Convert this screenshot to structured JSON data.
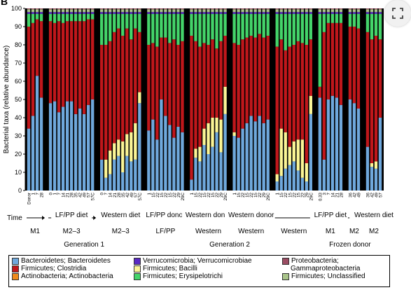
{
  "panel_label": "B",
  "chart_data": {
    "type": "bar",
    "stacked": true,
    "ylabel": "Bacterial taxa (relative abundance)",
    "ylim": [
      0,
      100
    ],
    "yticks": [
      0,
      10,
      20,
      30,
      40,
      50,
      60,
      70,
      80,
      90,
      100
    ],
    "xlabel_prefix": "Time",
    "series": [
      {
        "name": "Bacteroidetes; Bacteroidetes",
        "color": "#6fa8dc"
      },
      {
        "name": "Firmicutes; Clostridia",
        "color": "#c0171b"
      },
      {
        "name": "Actinobacteria; Actinobacteria",
        "color": "#f08a1c"
      },
      {
        "name": "Verrucomicrobia; Verrucomicrobiae",
        "color": "#5a2bc4"
      },
      {
        "name": "Firmicutes; Bacilli",
        "color": "#fbf596"
      },
      {
        "name": "Firmicutes; Erysipelotrichi",
        "color": "#44d46a"
      },
      {
        "name": "Proteobacteria; Gammaproteobacteria",
        "color": "#9b4d63"
      },
      {
        "name": "Firmicutes; Unclassified",
        "color": "#a9c48a"
      }
    ],
    "groups": [
      {
        "phase": "M1",
        "diet": "",
        "labels": [
          "Donor",
          "1",
          "7",
          "28"
        ],
        "bacteroidetes": [
          34,
          41,
          63,
          51
        ],
        "bacilli": [
          0,
          0,
          0,
          0
        ],
        "erysipelotrichi": [
          7,
          5,
          3,
          4
        ]
      },
      {
        "phase": "M2–3",
        "diet": "LF/PP diet",
        "labels": [
          "0",
          "1",
          "7",
          "14",
          "21",
          "28",
          "35",
          "42",
          "49",
          "57",
          "57C"
        ],
        "bacteroidetes": [
          48,
          49,
          43,
          46,
          49,
          49,
          42,
          45,
          42,
          47,
          50
        ],
        "bacilli": [
          0,
          0,
          0,
          0,
          0,
          0,
          0,
          0,
          0,
          0,
          0
        ],
        "erysipelotrichi": [
          4,
          5,
          4,
          5,
          4,
          4,
          4,
          4,
          4,
          3,
          3
        ]
      },
      {
        "phase": "M2–3",
        "diet": "Western diet",
        "labels": [
          "0",
          "7",
          "14",
          "21",
          "28",
          "35",
          "42",
          "49",
          "57",
          "57C"
        ],
        "bacteroidetes": [
          17,
          7,
          9,
          17,
          19,
          10,
          19,
          16,
          17,
          48
        ],
        "bacilli": [
          0,
          10,
          13,
          9,
          9,
          17,
          12,
          16,
          20,
          6
        ],
        "erysipelotrichi": [
          17,
          17,
          15,
          10,
          8,
          12,
          8,
          14,
          8,
          10
        ]
      },
      {
        "phase": "LF/PP",
        "diet": "LF/PP donor",
        "labels": [
          "1",
          "15",
          "22",
          "15",
          "22",
          "15",
          "22",
          "29",
          "29C"
        ],
        "bacteroidetes": [
          33,
          39,
          28,
          50,
          41,
          36,
          29,
          35,
          32
        ],
        "bacilli": [
          0,
          0,
          0,
          0,
          0,
          0,
          0,
          0,
          0
        ],
        "erysipelotrichi": [
          17,
          16,
          18,
          13,
          13,
          16,
          14,
          17,
          15
        ]
      },
      {
        "phase": "Western",
        "diet": "Western donor",
        "labels": [
          "1",
          "15",
          "22",
          "15",
          "22",
          "15",
          "22",
          "29",
          "29C"
        ],
        "bacteroidetes": [
          6,
          18,
          16,
          25,
          20,
          24,
          32,
          21,
          42
        ],
        "bacilli": [
          0,
          5,
          8,
          9,
          17,
          16,
          8,
          18,
          15
        ],
        "erysipelotrichi": [
          12,
          15,
          18,
          16,
          17,
          14,
          19,
          15,
          12
        ]
      },
      {
        "phase": "Western",
        "diet": "Western donor",
        "labels": [
          "1",
          "15",
          "22",
          "15",
          "22",
          "15",
          "22",
          "29",
          "29C"
        ],
        "bacteroidetes": [
          30,
          29,
          34,
          37,
          41,
          38,
          41,
          37,
          39
        ],
        "bacilli": [
          2,
          0,
          0,
          0,
          0,
          0,
          0,
          0,
          0
        ],
        "erysipelotrichi": [
          16,
          17,
          14,
          13,
          12,
          13,
          11,
          13,
          12
        ]
      },
      {
        "phase": "Western",
        "diet": "",
        "labels": [
          "1",
          "15",
          "22",
          "15",
          "22",
          "15",
          "22",
          "29",
          "29C"
        ],
        "bacteroidetes": [
          5,
          8,
          12,
          14,
          16,
          11,
          7,
          5,
          42
        ],
        "bacilli": [
          4,
          26,
          20,
          10,
          11,
          17,
          21,
          10,
          10
        ],
        "erysipelotrichi": [
          18,
          14,
          20,
          18,
          17,
          15,
          16,
          17,
          14
        ]
      },
      {
        "phase": "M1",
        "diet": "LF/PP diet",
        "labels": [
          "0.33",
          "3",
          "7",
          "14",
          "21",
          "28"
        ],
        "bacteroidetes": [
          51,
          17,
          50,
          52,
          51,
          47
        ],
        "bacilli": [
          0,
          0,
          0,
          0,
          0,
          0
        ],
        "erysipelotrichi": [
          40,
          10,
          5,
          5,
          5,
          5
        ]
      },
      {
        "phase": "M2",
        "diet": "",
        "labels": [
          "36",
          "42",
          "49"
        ],
        "bacteroidetes": [
          50,
          48,
          45
        ],
        "bacilli": [
          0,
          0,
          0
        ],
        "erysipelotrichi": [
          7,
          7,
          8
        ]
      },
      {
        "phase": "M2",
        "diet": "Western diet",
        "labels": [
          "36",
          "42",
          "49",
          "57"
        ],
        "bacteroidetes": [
          24,
          13,
          12,
          40
        ],
        "bacilli": [
          0,
          2,
          4,
          0
        ],
        "erysipelotrichi": [
          10,
          14,
          12,
          14
        ]
      }
    ]
  },
  "time_axis": {
    "label": "Time",
    "bottom_labels": [
      {
        "text": "M1"
      },
      {
        "text": "M2–3"
      },
      {
        "text": "M2–3"
      },
      {
        "text": "LF/PP"
      },
      {
        "text": "Western"
      },
      {
        "text": "Western"
      },
      {
        "text": "M1"
      },
      {
        "text": "M2"
      }
    ],
    "group_labels": [
      {
        "text": "Generation 1"
      },
      {
        "text": "Generation 2"
      },
      {
        "text": "Frozen donor"
      }
    ]
  },
  "legend": [
    {
      "label": "Bacteroidetes; Bacteroidetes",
      "color": "#6fa8dc"
    },
    {
      "label": "Firmicutes; Clostridia",
      "color": "#c0171b"
    },
    {
      "label": "Actinobacteria; Actinobacteria",
      "color": "#f08a1c"
    },
    {
      "label": "Verrucomicrobia; Verrucomicrobiae",
      "color": "#5a2bc4"
    },
    {
      "label": "Firmicutes; Bacilli",
      "color": "#fbf596"
    },
    {
      "label": "Firmicutes; Erysipelotrichi",
      "color": "#44d46a"
    },
    {
      "label": "Proteobacteria;",
      "color": "#9b4d63"
    },
    {
      "label": "Gammaproteobacteria",
      "color": ""
    },
    {
      "label": "Firmicutes; Unclassified",
      "color": "#a9c48a"
    }
  ],
  "ui": {
    "expand_icon": "expand-icon"
  }
}
